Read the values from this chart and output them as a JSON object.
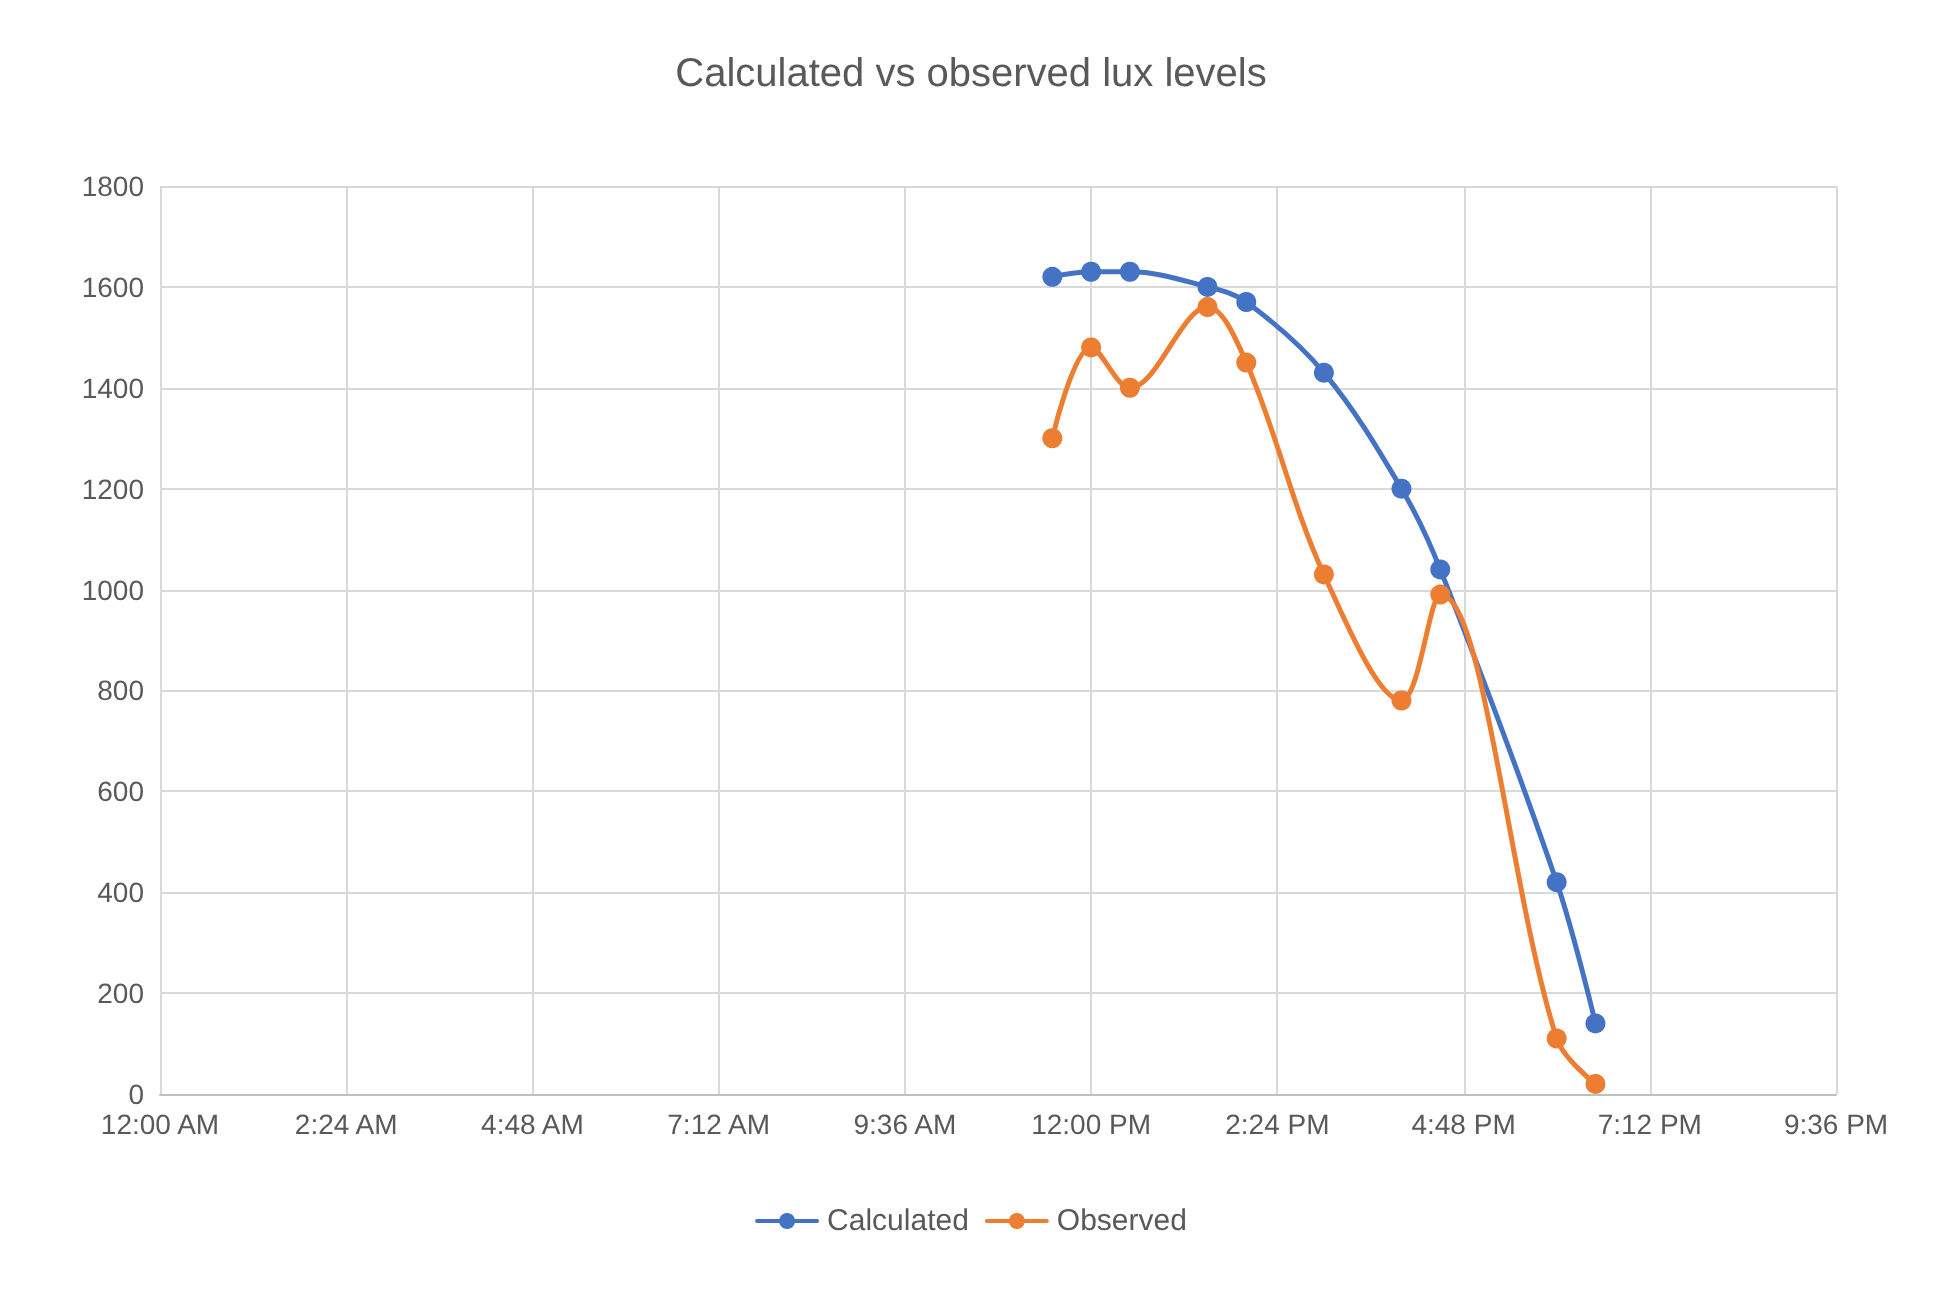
{
  "chart_data": {
    "type": "line",
    "title": "Calculated vs observed lux levels",
    "x": [
      11.5,
      12.0,
      12.5,
      13.5,
      14.0,
      15.0,
      16.0,
      16.5,
      18.0,
      18.5
    ],
    "series": [
      {
        "name": "Calculated",
        "color": "#4472c4",
        "values": [
          1620,
          1630,
          1630,
          1600,
          1570,
          1430,
          1200,
          1040,
          420,
          140
        ]
      },
      {
        "name": "Observed",
        "color": "#ed7d31",
        "values": [
          1300,
          1480,
          1400,
          1560,
          1450,
          1030,
          780,
          990,
          110,
          20
        ]
      }
    ],
    "xlim": [
      0,
      21.6
    ],
    "xticks": [
      {
        "value": 0,
        "label": "12:00 AM"
      },
      {
        "value": 2.4,
        "label": "2:24 AM"
      },
      {
        "value": 4.8,
        "label": "4:48 AM"
      },
      {
        "value": 7.2,
        "label": "7:12 AM"
      },
      {
        "value": 9.6,
        "label": "9:36 AM"
      },
      {
        "value": 12,
        "label": "12:00 PM"
      },
      {
        "value": 14.4,
        "label": "2:24 PM"
      },
      {
        "value": 16.8,
        "label": "4:48 PM"
      },
      {
        "value": 19.2,
        "label": "7:12 PM"
      },
      {
        "value": 21.6,
        "label": "9:36 PM"
      }
    ],
    "ylim": [
      0,
      1800
    ],
    "yticks": [
      0,
      200,
      400,
      600,
      800,
      1000,
      1200,
      1400,
      1600,
      1800
    ],
    "grid": true,
    "legend": "bottom",
    "marker": "circle",
    "line_style": "solid"
  }
}
